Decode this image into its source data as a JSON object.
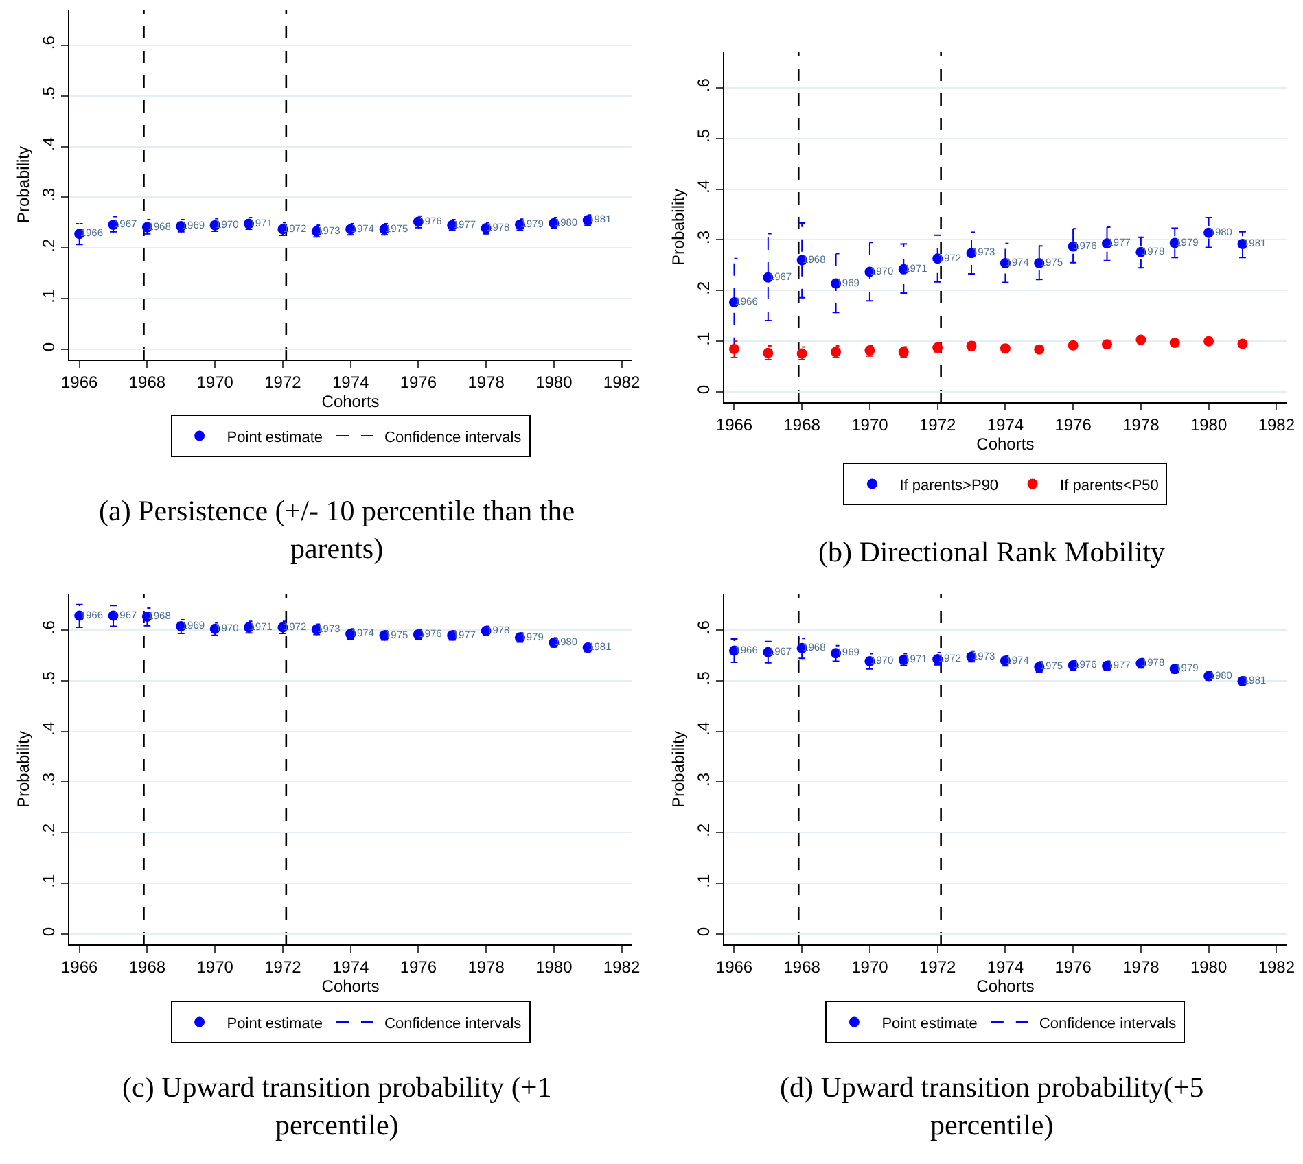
{
  "chart_data": [
    {
      "type": "scatter",
      "title": "(a) Persistence (+/- 10 percentile than the parents)",
      "xlabel": "Cohorts",
      "ylabel": "Probability",
      "x": [
        1966,
        1967,
        1968,
        1969,
        1970,
        1971,
        1972,
        1973,
        1974,
        1975,
        1976,
        1977,
        1978,
        1979,
        1980,
        1981
      ],
      "xlim": [
        1965.7,
        1982.3
      ],
      "xticks": [
        1966,
        1968,
        1970,
        1972,
        1974,
        1976,
        1978,
        1980,
        1982
      ],
      "ylim": [
        -0.02,
        0.67
      ],
      "yticks": [
        {
          "value": 0,
          "label": "0"
        },
        {
          "value": 0.1,
          "label": ".1"
        },
        {
          "value": 0.2,
          "label": ".2"
        },
        {
          "value": 0.3,
          "label": ".3"
        },
        {
          "value": 0.4,
          "label": ".4"
        },
        {
          "value": 0.5,
          "label": ".5"
        },
        {
          "value": 0.6,
          "label": ".6"
        }
      ],
      "grid": "y",
      "legend": "bottom",
      "marker": "circle",
      "series": [
        {
          "name": "Point estimate",
          "color": "#0000ff",
          "values": [
            0.228,
            0.246,
            0.241,
            0.243,
            0.245,
            0.248,
            0.237,
            0.233,
            0.237,
            0.237,
            0.252,
            0.245,
            0.239,
            0.246,
            0.249,
            0.255
          ],
          "errors": [
            [
              0.207,
              0.248
            ],
            [
              0.232,
              0.262
            ],
            [
              0.228,
              0.256
            ],
            [
              0.232,
              0.256
            ],
            [
              0.233,
              0.258
            ],
            [
              0.237,
              0.26
            ],
            [
              0.225,
              0.25
            ],
            [
              0.222,
              0.245
            ],
            [
              0.226,
              0.248
            ],
            [
              0.226,
              0.248
            ],
            [
              0.24,
              0.263
            ],
            [
              0.235,
              0.256
            ],
            [
              0.228,
              0.25
            ],
            [
              0.235,
              0.257
            ],
            [
              0.239,
              0.26
            ],
            [
              0.245,
              0.265
            ]
          ]
        },
        {
          "name": "Confidence intervals",
          "type": "line",
          "line_style": "dashed",
          "color": "#0000ff",
          "values": [
            null,
            null,
            null,
            null,
            null,
            null,
            null,
            null,
            null,
            null,
            null,
            null,
            null,
            null,
            null,
            null
          ]
        }
      ],
      "annotations": [
        {
          "text": "1966",
          "x": 1966,
          "y": 0.228
        },
        {
          "text": "1967",
          "x": 1967,
          "y": 0.246
        },
        {
          "text": "1968",
          "x": 1968,
          "y": 0.241
        },
        {
          "text": "1969",
          "x": 1969,
          "y": 0.243
        },
        {
          "text": "1970",
          "x": 1970,
          "y": 0.245
        },
        {
          "text": "1971",
          "x": 1971,
          "y": 0.248
        },
        {
          "text": "1972",
          "x": 1972,
          "y": 0.237
        },
        {
          "text": "1973",
          "x": 1973,
          "y": 0.233
        },
        {
          "text": "1974",
          "x": 1974,
          "y": 0.237
        },
        {
          "text": "1975",
          "x": 1975,
          "y": 0.237
        },
        {
          "text": "1976",
          "x": 1976,
          "y": 0.252
        },
        {
          "text": "1977",
          "x": 1977,
          "y": 0.245
        },
        {
          "text": "1978",
          "x": 1978,
          "y": 0.239
        },
        {
          "text": "1979",
          "x": 1979,
          "y": 0.246
        },
        {
          "text": "1980",
          "x": 1980,
          "y": 0.249
        },
        {
          "text": "1981",
          "x": 1981,
          "y": 0.255
        }
      ],
      "ref_lines": [
        {
          "axis": "x",
          "value": 1967.9,
          "color": "#000000",
          "line_style": "dashed"
        },
        {
          "axis": "x",
          "value": 1972.1,
          "color": "#000000",
          "line_style": "dashed"
        }
      ]
    },
    {
      "type": "scatter",
      "title": "(b) Directional Rank Mobility",
      "xlabel": "Cohorts",
      "ylabel": "Probability",
      "x": [
        1966,
        1967,
        1968,
        1969,
        1970,
        1971,
        1972,
        1973,
        1974,
        1975,
        1976,
        1977,
        1978,
        1979,
        1980,
        1981
      ],
      "xlim": [
        1965.7,
        1982.3
      ],
      "xticks": [
        1966,
        1968,
        1970,
        1972,
        1974,
        1976,
        1978,
        1980,
        1982
      ],
      "ylim": [
        -0.02,
        0.67
      ],
      "yticks": [
        {
          "value": 0,
          "label": "0"
        },
        {
          "value": 0.1,
          "label": ".1"
        },
        {
          "value": 0.2,
          "label": ".2"
        },
        {
          "value": 0.3,
          "label": ".3"
        },
        {
          "value": 0.4,
          "label": ".4"
        },
        {
          "value": 0.5,
          "label": ".5"
        },
        {
          "value": 0.6,
          "label": ".6"
        }
      ],
      "grid": "y",
      "legend": "bottom",
      "marker": "circle",
      "series": [
        {
          "name": "If parents>P90",
          "color": "#0000ff",
          "values": [
            0.177,
            0.226,
            0.26,
            0.214,
            0.237,
            0.242,
            0.263,
            0.274,
            0.254,
            0.254,
            0.287,
            0.293,
            0.276,
            0.294,
            0.314,
            0.292
          ],
          "errors": [
            [
              0.09,
              0.263
            ],
            [
              0.141,
              0.312
            ],
            [
              0.186,
              0.333
            ],
            [
              0.157,
              0.273
            ],
            [
              0.18,
              0.295
            ],
            [
              0.195,
              0.292
            ],
            [
              0.217,
              0.309
            ],
            [
              0.233,
              0.315
            ],
            [
              0.216,
              0.293
            ],
            [
              0.222,
              0.288
            ],
            [
              0.255,
              0.322
            ],
            [
              0.259,
              0.325
            ],
            [
              0.245,
              0.305
            ],
            [
              0.265,
              0.323
            ],
            [
              0.285,
              0.344
            ],
            [
              0.265,
              0.316
            ]
          ]
        },
        {
          "name": "If parents<P50",
          "color": "#ff0000",
          "values": [
            0.085,
            0.077,
            0.076,
            0.079,
            0.082,
            0.079,
            0.088,
            0.091,
            0.086,
            0.084,
            0.092,
            0.094,
            0.103,
            0.097,
            0.1,
            0.095
          ],
          "errors": [
            [
              0.068,
              0.1
            ],
            [
              0.064,
              0.091
            ],
            [
              0.064,
              0.089
            ],
            [
              0.068,
              0.091
            ],
            [
              0.071,
              0.092
            ],
            [
              0.069,
              0.089
            ],
            [
              0.079,
              0.097
            ],
            [
              0.083,
              0.099
            ],
            [
              0.079,
              0.093
            ],
            [
              0.078,
              0.09
            ],
            [
              0.086,
              0.098
            ],
            [
              0.088,
              0.1
            ],
            [
              0.097,
              0.109
            ],
            [
              0.092,
              0.102
            ],
            [
              0.095,
              0.105
            ],
            [
              0.09,
              0.1
            ]
          ]
        }
      ],
      "annotations": [
        {
          "text": "1966",
          "x": 1966,
          "y": 0.177
        },
        {
          "text": "1967",
          "x": 1967,
          "y": 0.226
        },
        {
          "text": "1968",
          "x": 1968,
          "y": 0.26
        },
        {
          "text": "1969",
          "x": 1969,
          "y": 0.214
        },
        {
          "text": "1970",
          "x": 1970,
          "y": 0.237
        },
        {
          "text": "1971",
          "x": 1971,
          "y": 0.242
        },
        {
          "text": "1972",
          "x": 1972,
          "y": 0.263
        },
        {
          "text": "1973",
          "x": 1973,
          "y": 0.274
        },
        {
          "text": "1974",
          "x": 1974,
          "y": 0.254
        },
        {
          "text": "1975",
          "x": 1975,
          "y": 0.254
        },
        {
          "text": "1976",
          "x": 1976,
          "y": 0.287
        },
        {
          "text": "1977",
          "x": 1977,
          "y": 0.293
        },
        {
          "text": "1978",
          "x": 1978,
          "y": 0.276
        },
        {
          "text": "1979",
          "x": 1979,
          "y": 0.294
        },
        {
          "text": "1980",
          "x": 1980,
          "y": 0.314
        },
        {
          "text": "1981",
          "x": 1981,
          "y": 0.292
        }
      ],
      "ref_lines": [
        {
          "axis": "x",
          "value": 1967.9,
          "color": "#000000",
          "line_style": "dashed"
        },
        {
          "axis": "x",
          "value": 1972.1,
          "color": "#000000",
          "line_style": "dashed"
        }
      ]
    },
    {
      "type": "scatter",
      "title": "(c) Upward transition probability (+1 percentile)",
      "xlabel": "Cohorts",
      "ylabel": "Probability",
      "x": [
        1966,
        1967,
        1968,
        1969,
        1970,
        1971,
        1972,
        1973,
        1974,
        1975,
        1976,
        1977,
        1978,
        1979,
        1980,
        1981
      ],
      "xlim": [
        1965.7,
        1982.3
      ],
      "xticks": [
        1966,
        1968,
        1970,
        1972,
        1974,
        1976,
        1978,
        1980,
        1982
      ],
      "ylim": [
        -0.02,
        0.67
      ],
      "yticks": [
        {
          "value": 0,
          "label": "0"
        },
        {
          "value": 0.1,
          "label": ".1"
        },
        {
          "value": 0.2,
          "label": ".2"
        },
        {
          "value": 0.3,
          "label": ".3"
        },
        {
          "value": 0.4,
          "label": ".4"
        },
        {
          "value": 0.5,
          "label": ".5"
        },
        {
          "value": 0.6,
          "label": ".6"
        }
      ],
      "grid": "y",
      "legend": "bottom",
      "marker": "circle",
      "series": [
        {
          "name": "Point estimate",
          "color": "#0000ff",
          "values": [
            0.628,
            0.628,
            0.626,
            0.607,
            0.602,
            0.605,
            0.605,
            0.601,
            0.592,
            0.589,
            0.591,
            0.589,
            0.598,
            0.585,
            0.575,
            0.565
          ],
          "errors": [
            [
              0.605,
              0.65
            ],
            [
              0.607,
              0.648
            ],
            [
              0.608,
              0.643
            ],
            [
              0.593,
              0.62
            ],
            [
              0.589,
              0.614
            ],
            [
              0.594,
              0.617
            ],
            [
              0.593,
              0.617
            ],
            [
              0.591,
              0.611
            ],
            [
              0.582,
              0.602
            ],
            [
              0.58,
              0.598
            ],
            [
              0.582,
              0.6
            ],
            [
              0.58,
              0.598
            ],
            [
              0.589,
              0.607
            ],
            [
              0.576,
              0.594
            ],
            [
              0.566,
              0.584
            ],
            [
              0.557,
              0.573
            ]
          ]
        },
        {
          "name": "Confidence intervals",
          "type": "line",
          "line_style": "dashed",
          "color": "#0000ff",
          "values": [
            null,
            null,
            null,
            null,
            null,
            null,
            null,
            null,
            null,
            null,
            null,
            null,
            null,
            null,
            null,
            null
          ]
        }
      ],
      "annotations": [
        {
          "text": "1966",
          "x": 1966,
          "y": 0.628
        },
        {
          "text": "1967",
          "x": 1967,
          "y": 0.628
        },
        {
          "text": "1968",
          "x": 1968,
          "y": 0.626
        },
        {
          "text": "1969",
          "x": 1969,
          "y": 0.607
        },
        {
          "text": "1970",
          "x": 1970,
          "y": 0.602
        },
        {
          "text": "1971",
          "x": 1971,
          "y": 0.605
        },
        {
          "text": "1972",
          "x": 1972,
          "y": 0.605
        },
        {
          "text": "1973",
          "x": 1973,
          "y": 0.601
        },
        {
          "text": "1974",
          "x": 1974,
          "y": 0.592
        },
        {
          "text": "1975",
          "x": 1975,
          "y": 0.589
        },
        {
          "text": "1976",
          "x": 1976,
          "y": 0.591
        },
        {
          "text": "1977",
          "x": 1977,
          "y": 0.589
        },
        {
          "text": "1978",
          "x": 1978,
          "y": 0.598
        },
        {
          "text": "1979",
          "x": 1979,
          "y": 0.585
        },
        {
          "text": "1980",
          "x": 1980,
          "y": 0.575
        },
        {
          "text": "1981",
          "x": 1981,
          "y": 0.565
        }
      ],
      "ref_lines": [
        {
          "axis": "x",
          "value": 1967.9,
          "color": "#000000",
          "line_style": "dashed"
        },
        {
          "axis": "x",
          "value": 1972.1,
          "color": "#000000",
          "line_style": "dashed"
        }
      ]
    },
    {
      "type": "scatter",
      "title": "(d) Upward transition probability(+5 percentile)",
      "xlabel": "Cohorts",
      "ylabel": "Probability",
      "x": [
        1966,
        1967,
        1968,
        1969,
        1970,
        1971,
        1972,
        1973,
        1974,
        1975,
        1976,
        1977,
        1978,
        1979,
        1980,
        1981
      ],
      "xlim": [
        1965.7,
        1982.3
      ],
      "xticks": [
        1966,
        1968,
        1970,
        1972,
        1974,
        1976,
        1978,
        1980,
        1982
      ],
      "ylim": [
        -0.02,
        0.67
      ],
      "yticks": [
        {
          "value": 0,
          "label": "0"
        },
        {
          "value": 0.1,
          "label": ".1"
        },
        {
          "value": 0.2,
          "label": ".2"
        },
        {
          "value": 0.3,
          "label": ".3"
        },
        {
          "value": 0.4,
          "label": ".4"
        },
        {
          "value": 0.5,
          "label": ".5"
        },
        {
          "value": 0.6,
          "label": ".6"
        }
      ],
      "grid": "y",
      "legend": "bottom",
      "marker": "circle",
      "series": [
        {
          "name": "Point estimate",
          "color": "#0000ff",
          "values": [
            0.559,
            0.556,
            0.564,
            0.554,
            0.538,
            0.541,
            0.542,
            0.547,
            0.539,
            0.527,
            0.53,
            0.529,
            0.534,
            0.523,
            0.509,
            0.499
          ],
          "errors": [
            [
              0.536,
              0.582
            ],
            [
              0.535,
              0.577
            ],
            [
              0.544,
              0.583
            ],
            [
              0.538,
              0.569
            ],
            [
              0.523,
              0.553
            ],
            [
              0.53,
              0.553
            ],
            [
              0.531,
              0.555
            ],
            [
              0.537,
              0.558
            ],
            [
              0.529,
              0.549
            ],
            [
              0.517,
              0.537
            ],
            [
              0.521,
              0.54
            ],
            [
              0.52,
              0.538
            ],
            [
              0.525,
              0.543
            ],
            [
              0.515,
              0.532
            ],
            [
              0.501,
              0.517
            ],
            [
              0.492,
              0.507
            ]
          ]
        },
        {
          "name": "Confidence intervals",
          "type": "line",
          "line_style": "dashed",
          "color": "#0000ff",
          "values": [
            null,
            null,
            null,
            null,
            null,
            null,
            null,
            null,
            null,
            null,
            null,
            null,
            null,
            null,
            null,
            null
          ]
        }
      ],
      "annotations": [
        {
          "text": "1966",
          "x": 1966,
          "y": 0.559
        },
        {
          "text": "1967",
          "x": 1967,
          "y": 0.556
        },
        {
          "text": "1968",
          "x": 1968,
          "y": 0.564
        },
        {
          "text": "1969",
          "x": 1969,
          "y": 0.554
        },
        {
          "text": "1970",
          "x": 1970,
          "y": 0.538
        },
        {
          "text": "1971",
          "x": 1971,
          "y": 0.541
        },
        {
          "text": "1972",
          "x": 1972,
          "y": 0.542
        },
        {
          "text": "1973",
          "x": 1973,
          "y": 0.547
        },
        {
          "text": "1974",
          "x": 1974,
          "y": 0.539
        },
        {
          "text": "1975",
          "x": 1975,
          "y": 0.527
        },
        {
          "text": "1976",
          "x": 1976,
          "y": 0.53
        },
        {
          "text": "1977",
          "x": 1977,
          "y": 0.529
        },
        {
          "text": "1978",
          "x": 1978,
          "y": 0.534
        },
        {
          "text": "1979",
          "x": 1979,
          "y": 0.523
        },
        {
          "text": "1980",
          "x": 1980,
          "y": 0.509
        },
        {
          "text": "1981",
          "x": 1981,
          "y": 0.499
        }
      ],
      "ref_lines": [
        {
          "axis": "x",
          "value": 1967.9,
          "color": "#000000",
          "line_style": "dashed"
        },
        {
          "axis": "x",
          "value": 1972.1,
          "color": "#000000",
          "line_style": "dashed"
        }
      ]
    }
  ]
}
